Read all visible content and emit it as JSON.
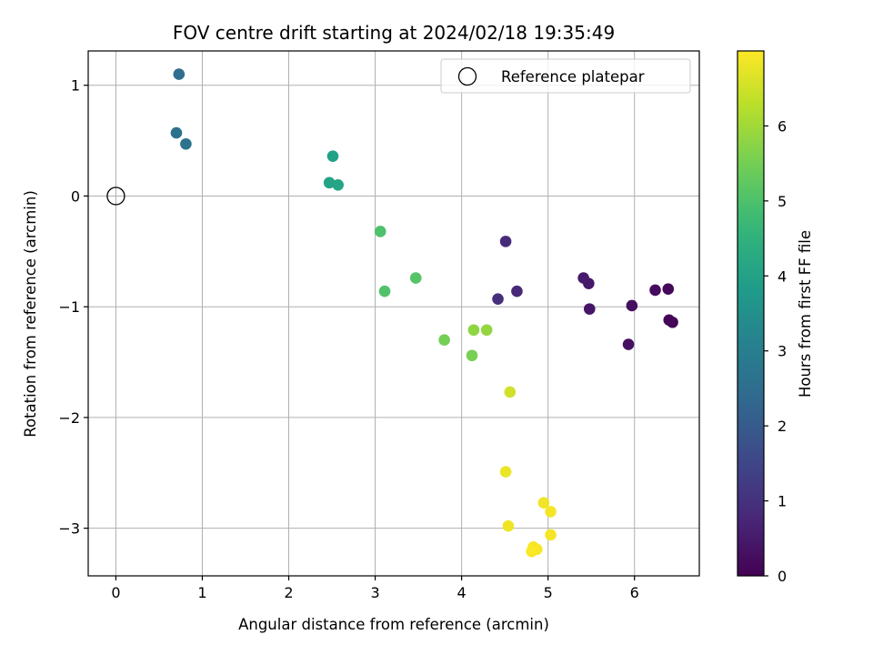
{
  "chart_data": {
    "type": "scatter",
    "title": "FOV centre drift starting at 2024/02/18 19:35:49",
    "xlabel": "Angular distance from reference (arcmin)",
    "ylabel": "Rotation from reference (arcmin)",
    "xlim": [
      -0.32,
      6.75
    ],
    "ylim": [
      -3.43,
      1.31
    ],
    "xticks": [
      0,
      1,
      2,
      3,
      4,
      5,
      6
    ],
    "yticks": [
      -3,
      -2,
      -1,
      0,
      1
    ],
    "xtick_labels": [
      "0",
      "1",
      "2",
      "3",
      "4",
      "5",
      "6"
    ],
    "ytick_labels": [
      "−3",
      "−2",
      "−1",
      "0",
      "1"
    ],
    "grid": true,
    "legend": {
      "placement": "top-right",
      "entries": [
        {
          "label": "Reference platepar",
          "marker": "open-circle"
        }
      ]
    },
    "reference_point": {
      "x": 0,
      "y": 0,
      "label": "Reference platepar"
    },
    "colormap": "viridis",
    "colorbar": {
      "label": "Hours from first FF file",
      "range": [
        0,
        7.0
      ],
      "ticks": [
        0,
        1,
        2,
        3,
        4,
        5,
        6
      ],
      "tick_labels": [
        "0",
        "1",
        "2",
        "3",
        "4",
        "5",
        "6"
      ]
    },
    "points": [
      {
        "x": 6.44,
        "y": -1.14,
        "hours": 0.05
      },
      {
        "x": 6.4,
        "y": -1.12,
        "hours": 0.1
      },
      {
        "x": 6.39,
        "y": -0.84,
        "hours": 0.15
      },
      {
        "x": 6.24,
        "y": -0.85,
        "hours": 0.2
      },
      {
        "x": 5.97,
        "y": -0.99,
        "hours": 0.25
      },
      {
        "x": 5.93,
        "y": -1.34,
        "hours": 0.3
      },
      {
        "x": 5.48,
        "y": -1.02,
        "hours": 0.4
      },
      {
        "x": 5.47,
        "y": -0.79,
        "hours": 0.45
      },
      {
        "x": 5.41,
        "y": -0.74,
        "hours": 0.5
      },
      {
        "x": 4.64,
        "y": -0.86,
        "hours": 0.8
      },
      {
        "x": 4.51,
        "y": -0.41,
        "hours": 0.85
      },
      {
        "x": 4.42,
        "y": -0.93,
        "hours": 0.95
      },
      {
        "x": 0.73,
        "y": 1.1,
        "hours": 2.5
      },
      {
        "x": 0.7,
        "y": 0.57,
        "hours": 2.6
      },
      {
        "x": 0.81,
        "y": 0.47,
        "hours": 2.65
      },
      {
        "x": 2.51,
        "y": 0.36,
        "hours": 4.0
      },
      {
        "x": 2.47,
        "y": 0.12,
        "hours": 4.05
      },
      {
        "x": 2.57,
        "y": 0.1,
        "hours": 4.1
      },
      {
        "x": 3.06,
        "y": -0.32,
        "hours": 5.0
      },
      {
        "x": 3.11,
        "y": -0.86,
        "hours": 5.05
      },
      {
        "x": 3.47,
        "y": -0.74,
        "hours": 5.1
      },
      {
        "x": 3.8,
        "y": -1.3,
        "hours": 5.5
      },
      {
        "x": 4.12,
        "y": -1.44,
        "hours": 5.55
      },
      {
        "x": 4.14,
        "y": -1.21,
        "hours": 5.8
      },
      {
        "x": 4.29,
        "y": -1.21,
        "hours": 5.85
      },
      {
        "x": 4.56,
        "y": -1.77,
        "hours": 6.5
      },
      {
        "x": 4.51,
        "y": -2.49,
        "hours": 6.8
      },
      {
        "x": 4.54,
        "y": -2.98,
        "hours": 6.85
      },
      {
        "x": 4.95,
        "y": -2.77,
        "hours": 6.85
      },
      {
        "x": 5.03,
        "y": -2.85,
        "hours": 6.9
      },
      {
        "x": 5.03,
        "y": -3.06,
        "hours": 6.9
      },
      {
        "x": 4.83,
        "y": -3.17,
        "hours": 6.95
      },
      {
        "x": 4.87,
        "y": -3.19,
        "hours": 6.95
      },
      {
        "x": 4.81,
        "y": -3.21,
        "hours": 6.97
      }
    ]
  }
}
